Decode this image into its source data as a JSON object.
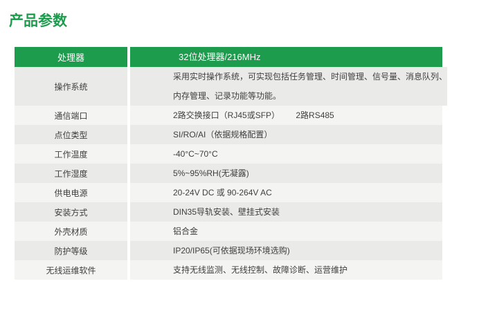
{
  "page": {
    "title": "产品参数"
  },
  "colors": {
    "green": "#1e9c4e",
    "row_gray": "#eaeae8",
    "row_light": "#f4f4f2",
    "text": "#3f3f3f"
  },
  "table": {
    "header": {
      "label": "处理器",
      "value": "32位处理器/216MHz"
    },
    "rows": [
      {
        "label": "操作系统",
        "value": "采用实时操作系统，可实现包括任务管理、时间管理、信号量、消息队列、\n内存管理、记录功能等功能。"
      },
      {
        "label": "通信端口",
        "value": "2路交换接口（RJ45或SFP）       2路RS485"
      },
      {
        "label": "点位类型",
        "value": "SI/RO/AI（依据规格配置）"
      },
      {
        "label": "工作温度",
        "value": "-40°C~70°C"
      },
      {
        "label": "工作湿度",
        "value": "5%~95%RH(无凝露)"
      },
      {
        "label": "供电电源",
        "value": "20-24V DC 或 90-264V AC"
      },
      {
        "label": "安装方式",
        "value": "DIN35导轨安装、壁挂式安装"
      },
      {
        "label": "外壳材质",
        "value": "铝合金"
      },
      {
        "label": "防护等级",
        "value": "IP20/IP65(可依据现场环境选购)"
      },
      {
        "label": "无线运维软件",
        "value": "支持无线监测、无线控制、故障诊断、运营维护"
      }
    ]
  }
}
